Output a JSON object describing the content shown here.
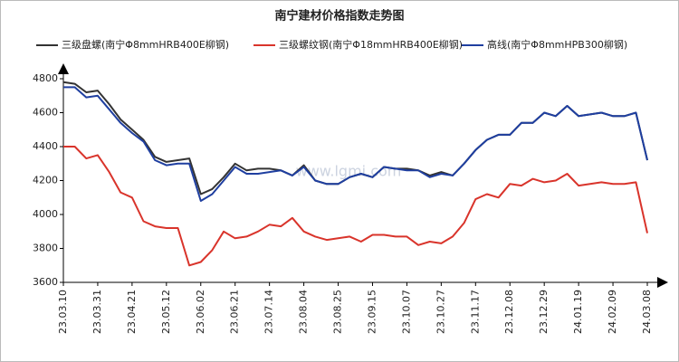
{
  "chart_data": {
    "type": "line",
    "title": "南宁建材价格指数走势图",
    "watermark": "www.lgmi.com",
    "categories": [
      "23.03.10",
      null,
      null,
      "23.03.31",
      null,
      null,
      "23.04.21",
      null,
      null,
      "23.05.12",
      null,
      null,
      "23.06.02",
      null,
      null,
      "23.06.21",
      null,
      null,
      "23.07.14",
      null,
      null,
      "23.08.04",
      null,
      null,
      "23.08.25",
      null,
      null,
      "23.09.15",
      null,
      null,
      "23.10.07",
      null,
      null,
      "23.10.27",
      null,
      null,
      "23.11.17",
      null,
      null,
      "23.12.08",
      null,
      null,
      "23.12.29",
      null,
      null,
      "24.01.19",
      null,
      null,
      "24.02.09",
      null,
      null,
      "24.03.08"
    ],
    "series": [
      {
        "name": "三级盘螺(南宁Φ8mmHRB400E柳钢)",
        "color": "#333333",
        "values": [
          4780,
          4770,
          4720,
          4730,
          4650,
          4560,
          4500,
          4440,
          4340,
          4310,
          4320,
          4330,
          4120,
          4150,
          4220,
          4300,
          4260,
          4270,
          4270,
          4260,
          4230,
          4290,
          4200,
          4180,
          4180,
          4220,
          4240,
          4220,
          4280,
          4270,
          4270,
          4260,
          4230,
          4250,
          4230,
          4300,
          4380,
          4440,
          4470,
          4470,
          4540,
          4540,
          4600,
          4580,
          4640,
          4580,
          4590,
          4600,
          4580,
          4580,
          4600,
          4320
        ]
      },
      {
        "name": "三级螺纹钢(南宁Φ18mmHRB400E柳钢)",
        "color": "#d9342b",
        "values": [
          4400,
          4400,
          4330,
          4350,
          4250,
          4130,
          4100,
          3960,
          3930,
          3920,
          3920,
          3700,
          3720,
          3790,
          3900,
          3860,
          3870,
          3900,
          3940,
          3930,
          3980,
          3900,
          3870,
          3850,
          3860,
          3870,
          3840,
          3880,
          3880,
          3870,
          3870,
          3820,
          3840,
          3830,
          3870,
          3950,
          4090,
          4120,
          4100,
          4180,
          4170,
          4210,
          4190,
          4200,
          4240,
          4170,
          4180,
          4190,
          4180,
          4180,
          4190,
          3890
        ]
      },
      {
        "name": "高线(南宁Φ8mmHPB300柳钢)",
        "color": "#1f3fa0",
        "values": [
          4750,
          4750,
          4690,
          4700,
          4620,
          4540,
          4480,
          4430,
          4320,
          4290,
          4300,
          4300,
          4080,
          4120,
          4200,
          4280,
          4240,
          4240,
          4250,
          4260,
          4230,
          4280,
          4200,
          4180,
          4180,
          4220,
          4240,
          4220,
          4280,
          4270,
          4260,
          4260,
          4220,
          4240,
          4230,
          4300,
          4380,
          4440,
          4470,
          4470,
          4540,
          4540,
          4600,
          4580,
          4640,
          4580,
          4590,
          4600,
          4580,
          4580,
          4600,
          4320
        ]
      }
    ],
    "ylim": [
      3600,
      4800
    ],
    "yticks": [
      3600,
      3800,
      4000,
      4200,
      4400,
      4600,
      4800
    ],
    "grid": false
  }
}
